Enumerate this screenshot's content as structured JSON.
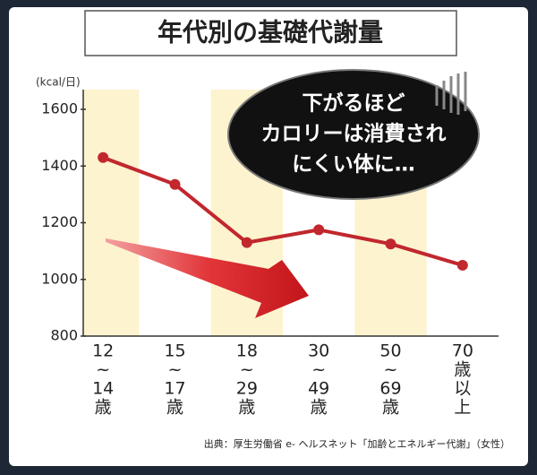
{
  "chart_data": {
    "type": "line",
    "title": "年代別の基礎代謝量",
    "y_label": "(kcal/日)",
    "categories": [
      [
        "12",
        "~",
        "14",
        "歳"
      ],
      [
        "15",
        "~",
        "17",
        "歳"
      ],
      [
        "18",
        "~",
        "29",
        "歳"
      ],
      [
        "30",
        "~",
        "49",
        "歳"
      ],
      [
        "50",
        "~",
        "69",
        "歳"
      ],
      [
        "70",
        "歳",
        "以",
        "上"
      ]
    ],
    "values": [
      1430,
      1335,
      1130,
      1175,
      1125,
      1050
    ],
    "color": "#c1272d",
    "ylim": [
      800,
      1600
    ],
    "yticks": [
      800,
      1000,
      1200,
      1400,
      1600
    ],
    "annotation": [
      "下がるほど",
      "カロリーは消費され",
      "にくい体に…"
    ],
    "source": "出典：厚生労働省 e- ヘルスネット「加齢とエネルギー代謝」（女性）"
  }
}
